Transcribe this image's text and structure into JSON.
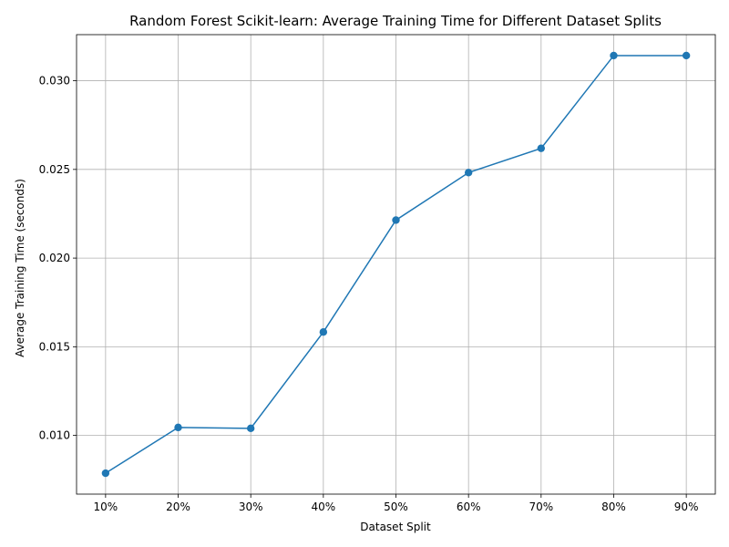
{
  "chart_data": {
    "type": "line",
    "title": "Random Forest Scikit-learn: Average Training Time for Different Dataset Splits",
    "xlabel": "Dataset Split",
    "ylabel": "Average Training Time (seconds)",
    "categories": [
      "10%",
      "20%",
      "30%",
      "40%",
      "50%",
      "60%",
      "70%",
      "80%",
      "90%"
    ],
    "series": [
      {
        "values": [
          0.00787,
          0.01045,
          0.0104,
          0.01583,
          0.02214,
          0.02482,
          0.02619,
          0.03142,
          0.03142
        ],
        "color": "#1f77b4",
        "marker": "circle"
      }
    ],
    "yticks": [
      0.01,
      0.015,
      0.02,
      0.025,
      0.03
    ],
    "ytick_labels": [
      "0.010",
      "0.015",
      "0.020",
      "0.025",
      "0.030"
    ],
    "ylim": [
      0.00669,
      0.0326
    ],
    "grid": true,
    "legend": "none"
  }
}
